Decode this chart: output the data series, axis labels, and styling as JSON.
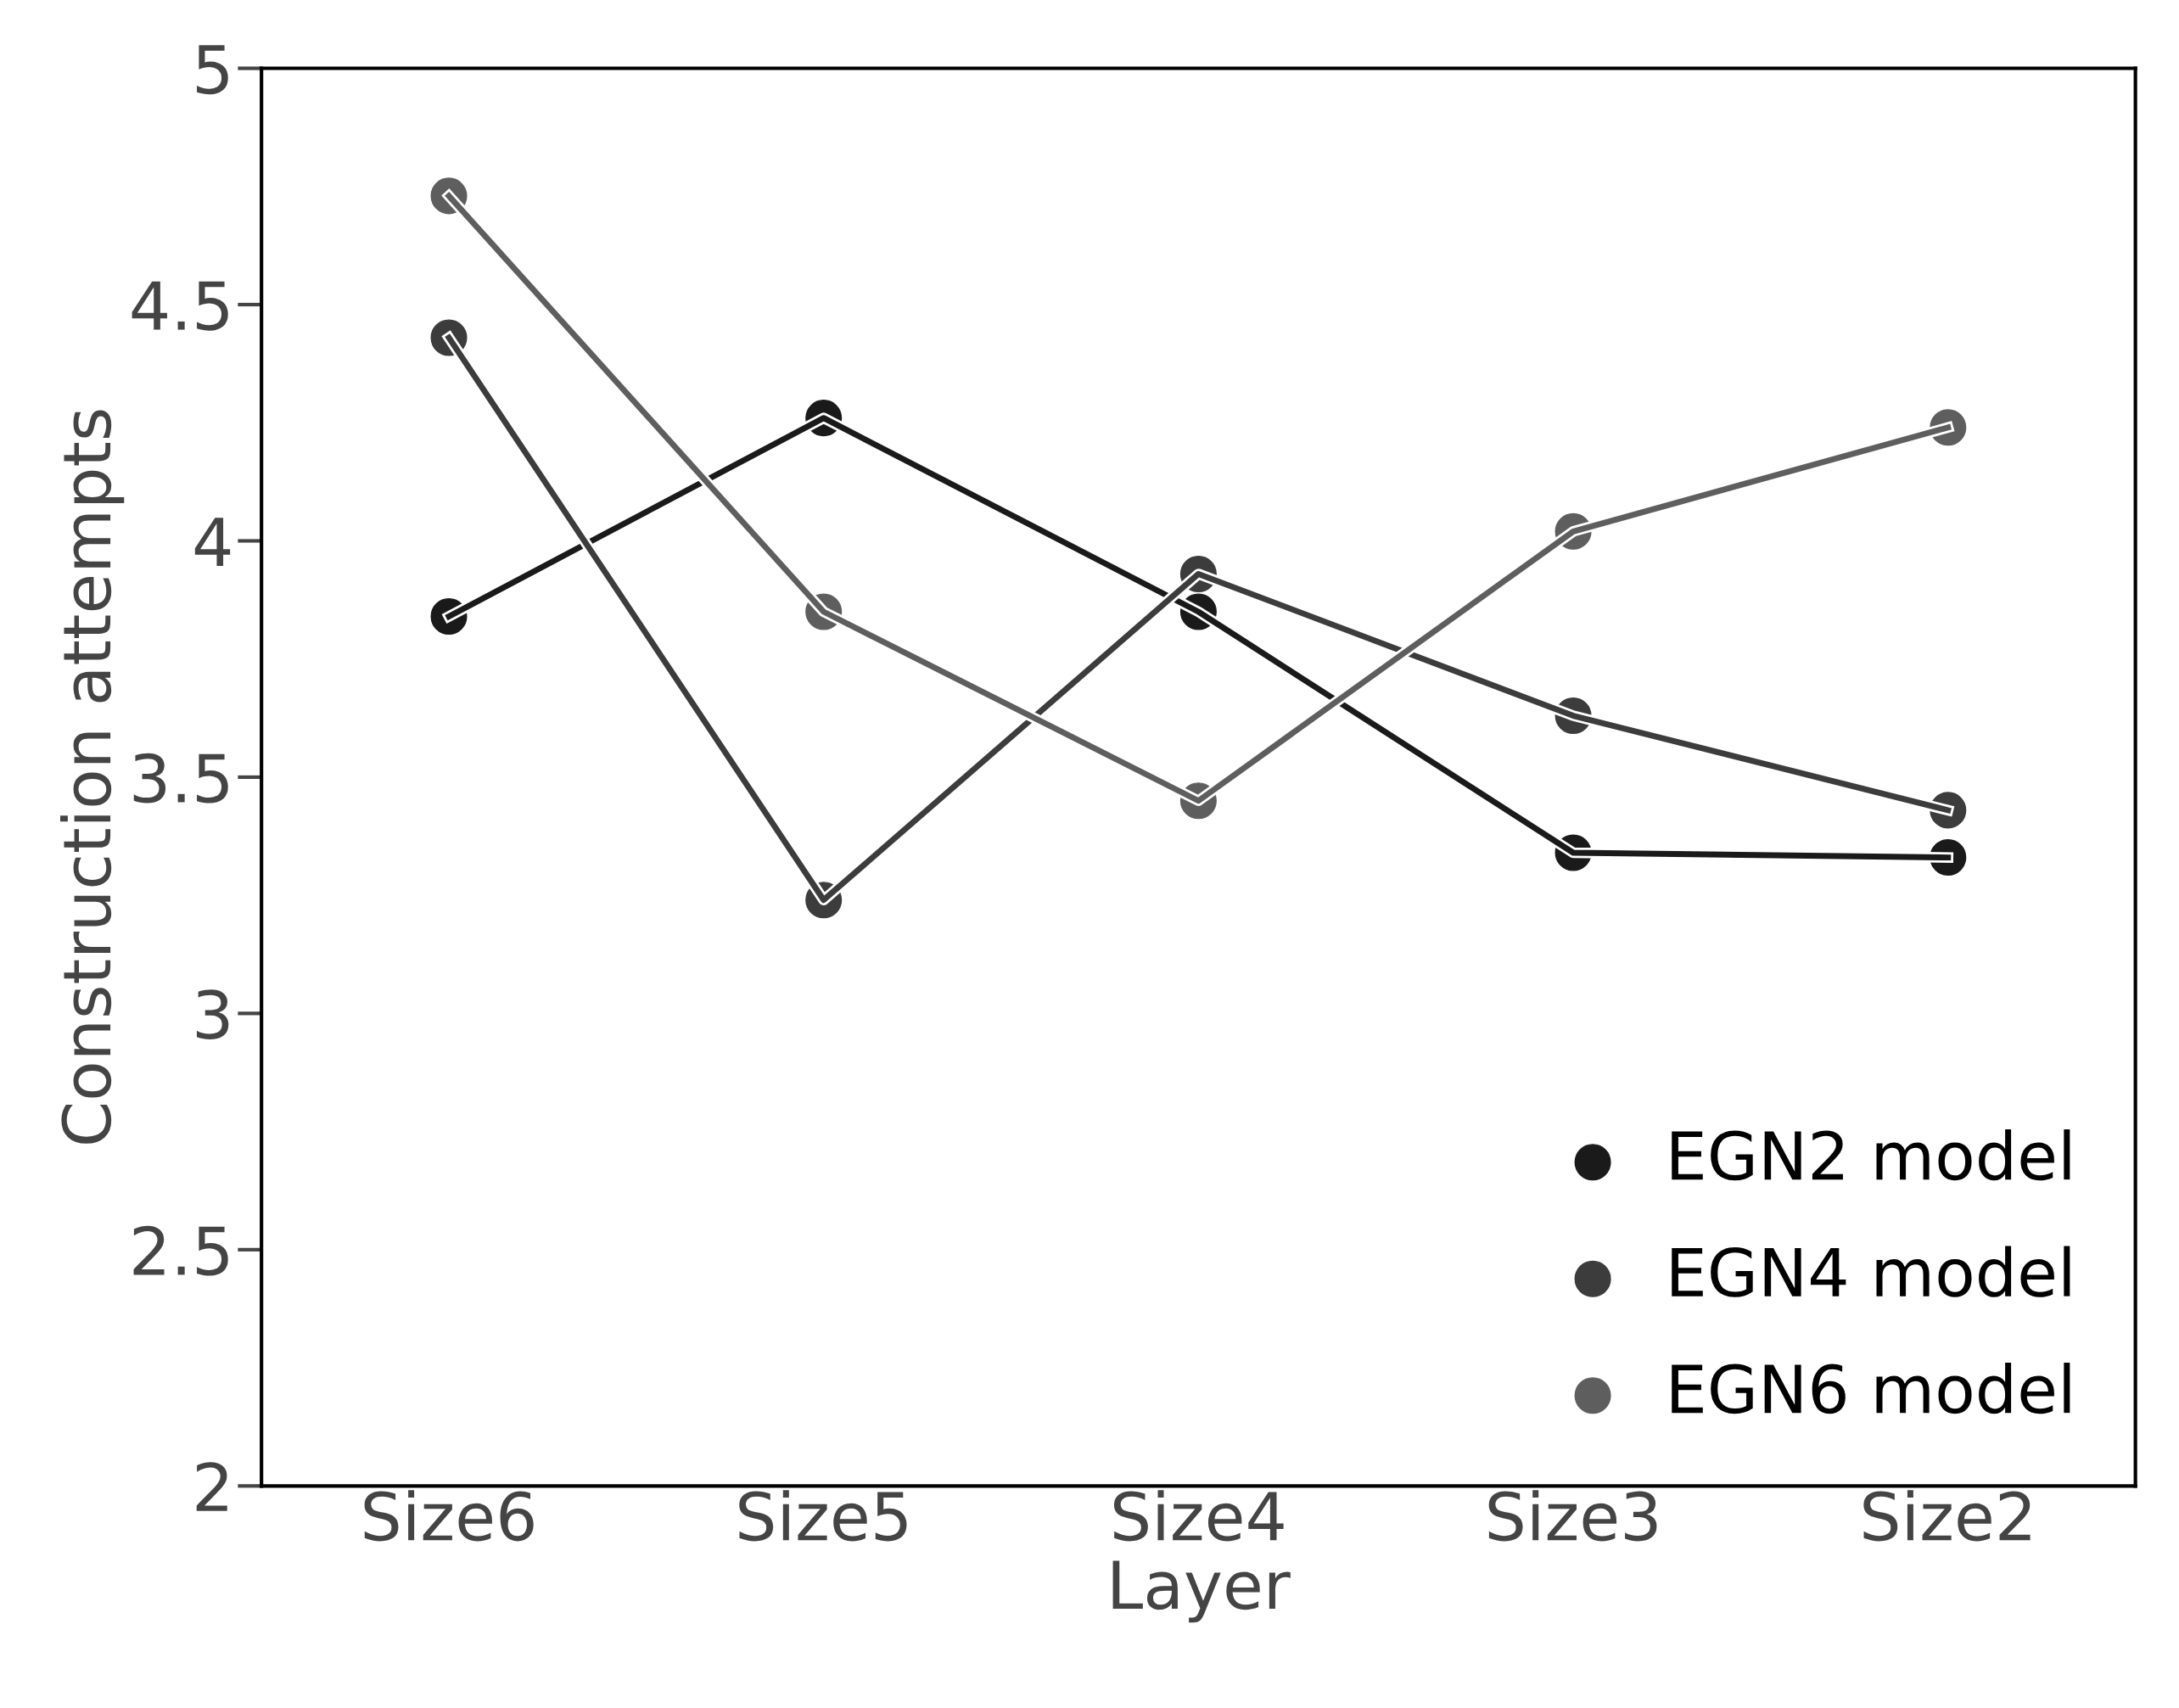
{
  "chart_data": {
    "type": "line",
    "xlabel": "Layer",
    "ylabel": "Construction attempts",
    "categories": [
      "Size6",
      "Size5",
      "Size4",
      "Size3",
      "Size2"
    ],
    "series": [
      {
        "name": "EGN2 model",
        "color": "#1a1a1a",
        "values": [
          3.84,
          4.26,
          3.85,
          3.34,
          3.33
        ]
      },
      {
        "name": "EGN4 model",
        "color": "#3c3c3c",
        "values": [
          4.43,
          3.24,
          3.93,
          3.63,
          3.43
        ]
      },
      {
        "name": "EGN6 model",
        "color": "#5e5e5e",
        "values": [
          4.73,
          3.85,
          3.45,
          4.02,
          4.24
        ]
      }
    ],
    "ylim": [
      2,
      5
    ],
    "yticks": [
      2,
      2.5,
      3,
      3.5,
      4,
      4.5,
      5
    ],
    "marker": "circle",
    "line_style": "solid",
    "legend": "bottom right",
    "grid": false
  }
}
